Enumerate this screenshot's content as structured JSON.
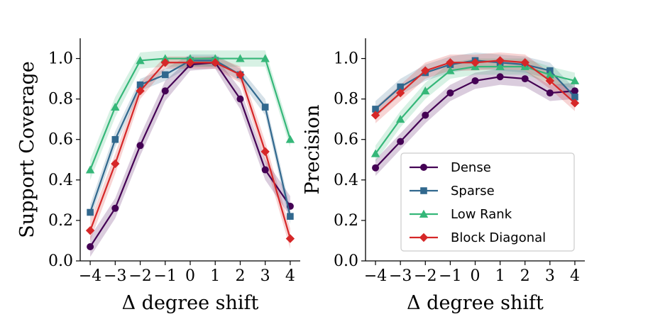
{
  "chart_data": [
    {
      "type": "line",
      "title": "",
      "xlabel": "Δ degree shift",
      "ylabel": "Support Coverage",
      "x": [
        -4,
        -3,
        -2,
        -1,
        0,
        1,
        2,
        3,
        4
      ],
      "x_tick_labels": [
        "−4",
        "−3",
        "−2",
        "−1",
        "0",
        "1",
        "2",
        "3",
        "4"
      ],
      "xlim": [
        -4.4,
        4.4
      ],
      "ylim": [
        0.0,
        1.1
      ],
      "y_ticks": [
        0.0,
        0.2,
        0.4,
        0.6,
        0.8,
        1.0
      ],
      "y_tick_labels": [
        "0.0",
        "0.2",
        "0.4",
        "0.6",
        "0.8",
        "1.0"
      ],
      "grid": false,
      "legend": false,
      "series": [
        {
          "name": "Dense",
          "color": "#440154",
          "marker": "circle",
          "values": [
            0.07,
            0.26,
            0.57,
            0.84,
            0.97,
            0.98,
            0.8,
            0.45,
            0.27
          ],
          "band": [
            0.05,
            0.05,
            0.05,
            0.05,
            0.03,
            0.03,
            0.05,
            0.05,
            0.05
          ]
        },
        {
          "name": "Sparse",
          "color": "#31688e",
          "marker": "square",
          "values": [
            0.24,
            0.6,
            0.87,
            0.92,
            0.99,
            0.99,
            0.92,
            0.76,
            0.22
          ],
          "band": [
            0.04,
            0.04,
            0.03,
            0.03,
            0.03,
            0.03,
            0.03,
            0.04,
            0.04
          ]
        },
        {
          "name": "Low Rank",
          "color": "#35b779",
          "marker": "triangle",
          "values": [
            0.45,
            0.76,
            0.99,
            1.0,
            1.0,
            1.0,
            1.0,
            1.0,
            0.6
          ],
          "band": [
            0.05,
            0.05,
            0.04,
            0.04,
            0.04,
            0.04,
            0.04,
            0.04,
            0.04
          ]
        },
        {
          "name": "Block Diagonal",
          "color": "#d62728",
          "marker": "diamond",
          "values": [
            0.15,
            0.48,
            0.84,
            0.98,
            0.98,
            0.98,
            0.92,
            0.54,
            0.11
          ],
          "band": [
            0.05,
            0.05,
            0.04,
            0.03,
            0.03,
            0.03,
            0.04,
            0.05,
            0.05
          ]
        }
      ]
    },
    {
      "type": "line",
      "title": "",
      "xlabel": "Δ degree shift",
      "ylabel": "Precision",
      "x": [
        -4,
        -3,
        -2,
        -1,
        0,
        1,
        2,
        3,
        4
      ],
      "x_tick_labels": [
        "−4",
        "−3",
        "−2",
        "−1",
        "0",
        "1",
        "2",
        "3",
        "4"
      ],
      "xlim": [
        -4.4,
        4.4
      ],
      "ylim": [
        0.0,
        1.1
      ],
      "y_ticks": [
        0.0,
        0.2,
        0.4,
        0.6,
        0.8,
        1.0
      ],
      "y_tick_labels": [
        "0.0",
        "0.2",
        "0.4",
        "0.6",
        "0.8",
        "1.0"
      ],
      "grid": false,
      "legend": "lower-right",
      "series": [
        {
          "name": "Dense",
          "color": "#440154",
          "marker": "circle",
          "values": [
            0.46,
            0.59,
            0.72,
            0.83,
            0.89,
            0.91,
            0.9,
            0.83,
            0.84
          ],
          "band": [
            0.04,
            0.04,
            0.04,
            0.04,
            0.04,
            0.04,
            0.04,
            0.04,
            0.04
          ]
        },
        {
          "name": "Sparse",
          "color": "#31688e",
          "marker": "square",
          "values": [
            0.75,
            0.86,
            0.93,
            0.97,
            0.99,
            0.98,
            0.97,
            0.94,
            0.81
          ],
          "band": [
            0.04,
            0.04,
            0.04,
            0.04,
            0.04,
            0.04,
            0.04,
            0.04,
            0.04
          ]
        },
        {
          "name": "Low Rank",
          "color": "#35b779",
          "marker": "triangle",
          "values": [
            0.53,
            0.7,
            0.84,
            0.94,
            0.96,
            0.96,
            0.96,
            0.92,
            0.89
          ],
          "band": [
            0.04,
            0.04,
            0.04,
            0.04,
            0.04,
            0.04,
            0.04,
            0.04,
            0.04
          ]
        },
        {
          "name": "Block Diagonal",
          "color": "#d62728",
          "marker": "diamond",
          "values": [
            0.72,
            0.83,
            0.94,
            0.98,
            0.98,
            0.99,
            0.98,
            0.89,
            0.78
          ],
          "band": [
            0.04,
            0.04,
            0.04,
            0.04,
            0.04,
            0.04,
            0.04,
            0.04,
            0.04
          ]
        }
      ]
    }
  ]
}
